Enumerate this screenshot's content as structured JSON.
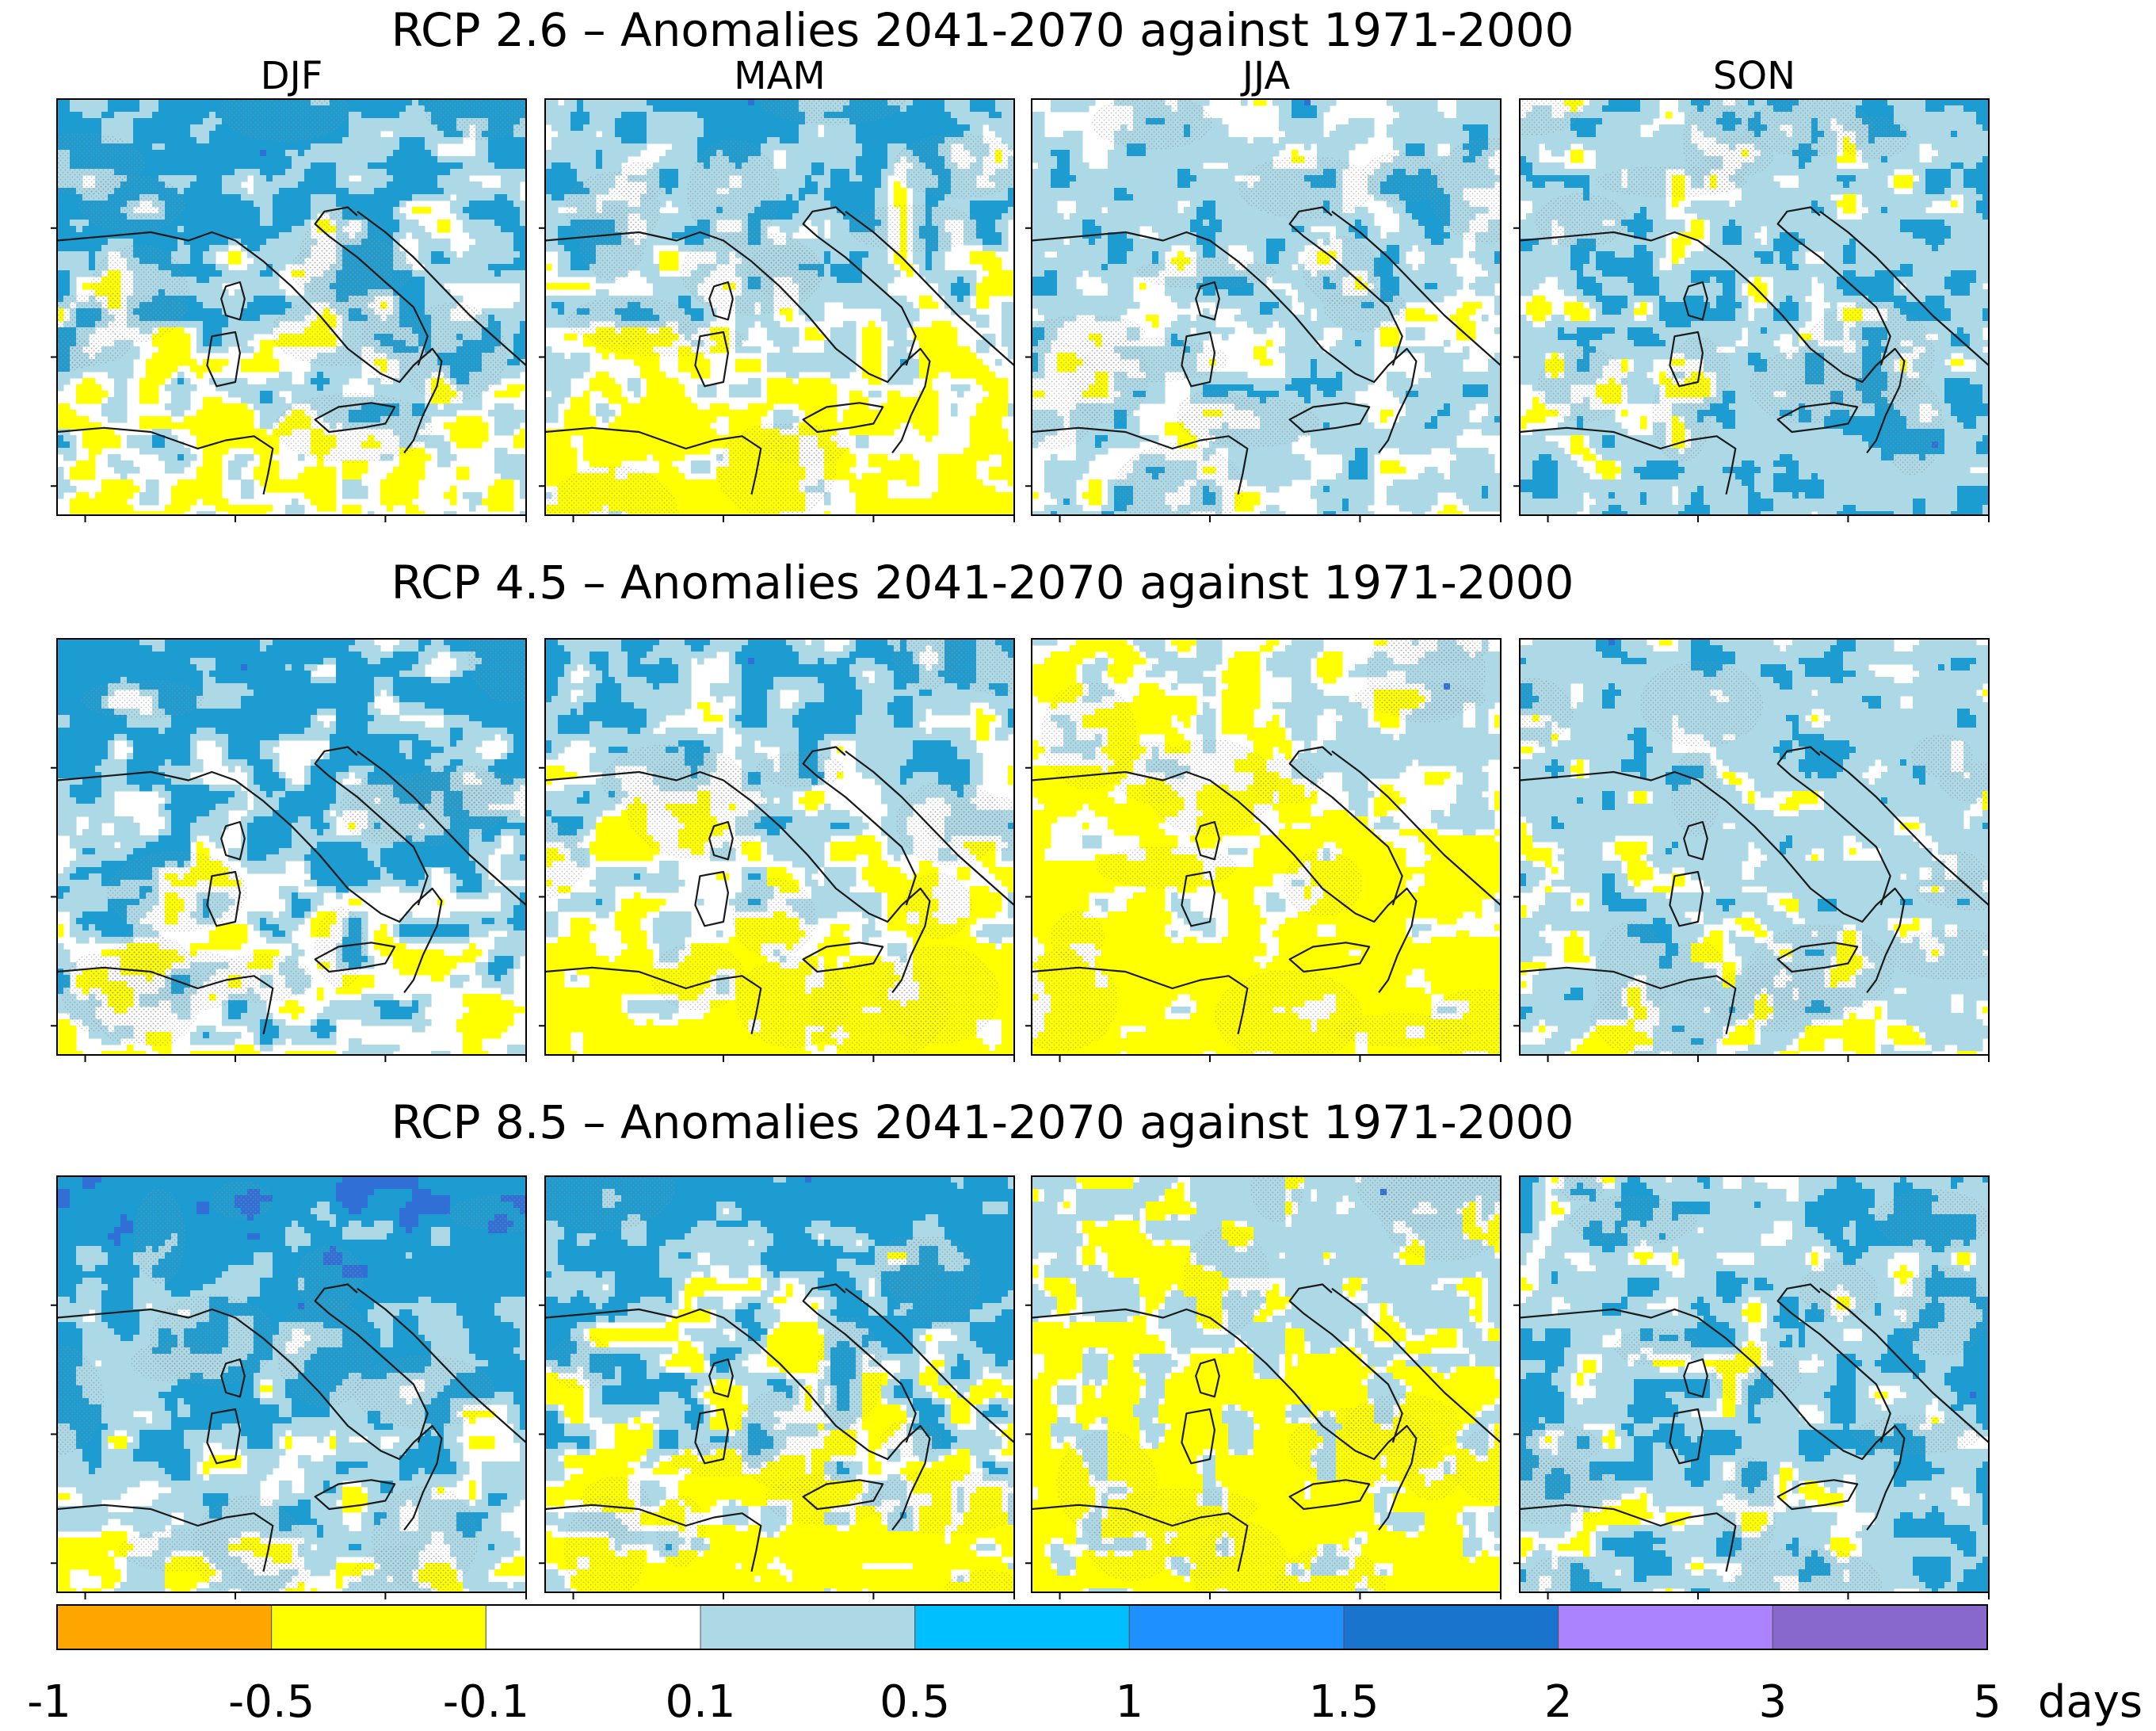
{
  "chart_data": {
    "type": "heatmap",
    "variable_unit": "days",
    "seasons": [
      "DJF",
      "MAM",
      "JJA",
      "SON"
    ],
    "panels": [
      {
        "title": "RCP 2.6 – Anomalies 2041-2070 against 1971-2000",
        "maps": [
          {
            "season": "DJF",
            "pattern": "south_yellow",
            "class_weights": {
              "-0.5..-0.1": 0.14,
              "-0.1..0.1": 0.22,
              "0.1..0.5": 0.34,
              "0.5..1": 0.3
            }
          },
          {
            "season": "MAM",
            "pattern": "south_yellow_strong",
            "class_weights": {
              "-0.5..-0.1": 0.28,
              "-0.1..0.1": 0.24,
              "0.1..0.5": 0.34,
              "0.5..1": 0.14
            }
          },
          {
            "season": "JJA",
            "pattern": "mixed_light",
            "class_weights": {
              "-0.5..-0.1": 0.03,
              "-0.1..0.1": 0.3,
              "0.1..0.5": 0.58,
              "0.5..1": 0.09
            }
          },
          {
            "season": "SON",
            "pattern": "mixed_blue",
            "class_weights": {
              "-0.5..-0.1": 0.04,
              "-0.1..0.1": 0.12,
              "0.1..0.5": 0.64,
              "0.5..1": 0.2
            }
          }
        ]
      },
      {
        "title": "RCP 4.5 – Anomalies 2041-2070 against 1971-2000",
        "maps": [
          {
            "season": "DJF",
            "pattern": "north_blue",
            "class_weights": {
              "-0.5..-0.1": 0.08,
              "-0.1..0.1": 0.26,
              "0.1..0.5": 0.3,
              "0.5..1": 0.36
            }
          },
          {
            "season": "MAM",
            "pattern": "south_yellow_strong",
            "class_weights": {
              "-0.5..-0.1": 0.32,
              "-0.1..0.1": 0.26,
              "0.1..0.5": 0.3,
              "0.5..1": 0.12
            }
          },
          {
            "season": "JJA",
            "pattern": "widespread_yellow",
            "class_weights": {
              "-0.5..-0.1": 0.58,
              "-0.1..0.1": 0.26,
              "0.1..0.5": 0.16,
              "0.5..1": 0.0
            }
          },
          {
            "season": "SON",
            "pattern": "mixed_light",
            "class_weights": {
              "-0.5..-0.1": 0.07,
              "-0.1..0.1": 0.14,
              "0.1..0.5": 0.72,
              "0.5..1": 0.07
            }
          }
        ]
      },
      {
        "title": "RCP 8.5 – Anomalies 2041-2070 against 1971-2000",
        "maps": [
          {
            "season": "DJF",
            "pattern": "north_blue_strong",
            "class_weights": {
              "-0.5..-0.1": 0.05,
              "-0.1..0.1": 0.1,
              "0.1..0.5": 0.4,
              "0.5..1": 0.42,
              "1..1.5": 0.03
            }
          },
          {
            "season": "MAM",
            "pattern": "south_yellow_strong",
            "class_weights": {
              "-0.5..-0.1": 0.3,
              "-0.1..0.1": 0.14,
              "0.1..0.5": 0.26,
              "0.5..1": 0.3
            }
          },
          {
            "season": "JJA",
            "pattern": "widespread_yellow",
            "class_weights": {
              "-0.5..-0.1": 0.52,
              "-0.1..0.1": 0.12,
              "0.1..0.5": 0.36,
              "0.5..1": 0.0
            }
          },
          {
            "season": "SON",
            "pattern": "mixed_blue",
            "class_weights": {
              "-0.5..-0.1": 0.04,
              "-0.1..0.1": 0.12,
              "0.1..0.5": 0.58,
              "0.5..1": 0.26
            }
          }
        ]
      }
    ],
    "colorbar": {
      "bins": [
        {
          "from": "-1",
          "to": "-0.5",
          "color": "#FFA500"
        },
        {
          "from": "-0.5",
          "to": "-0.1",
          "color": "#FFFF00"
        },
        {
          "from": "-0.1",
          "to": "0.1",
          "color": "#FFFFFF"
        },
        {
          "from": "0.1",
          "to": "0.5",
          "color": "#ADD8E6"
        },
        {
          "from": "0.5",
          "to": "1",
          "color": "#00BFFF"
        },
        {
          "from": "1",
          "to": "1.5",
          "color": "#1E90FF"
        },
        {
          "from": "1.5",
          "to": "2",
          "color": "#1874CD"
        },
        {
          "from": "2",
          "to": "3",
          "color": "#AB82FF"
        },
        {
          "from": "3",
          "to": "5",
          "color": "#8968CD"
        }
      ],
      "tick_labels": [
        "-1",
        "-0.5",
        "-0.1",
        "0.1",
        "0.5",
        "1",
        "1.5",
        "2",
        "3",
        "5"
      ],
      "unit_label": "days"
    },
    "map_fill_colors": {
      "-0.5..-0.1": "#FFFF00",
      "-0.1..0.1": "#FFFFFF",
      "0.1..0.5": "#ADD8E6",
      "0.5..1": "#1C9CD0",
      "1..1.5": "#2F6FD6"
    },
    "stipple_color": "#8E8E8E",
    "outline_color": "#1a1a1a"
  }
}
